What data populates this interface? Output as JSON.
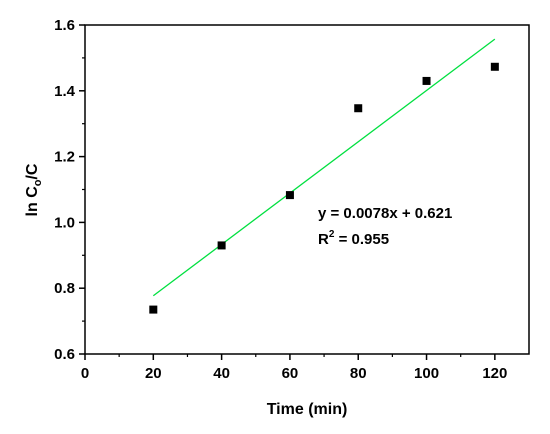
{
  "chart_data": {
    "type": "scatter",
    "xlabel": "Time (min)",
    "ylabel": {
      "main": "ln C",
      "sub": "o",
      "tail": "/C"
    },
    "xlim": [
      0,
      130
    ],
    "ylim": [
      0.6,
      1.6
    ],
    "xticks": [
      "0",
      "20",
      "40",
      "60",
      "80",
      "100",
      "120"
    ],
    "yticks": [
      "0.6",
      "0.8",
      "1.0",
      "1.2",
      "1.4",
      "1.6"
    ],
    "grid": false,
    "series": [
      {
        "x": [
          20,
          40,
          60,
          80,
          100,
          120
        ],
        "y": [
          0.735,
          0.93,
          1.083,
          1.347,
          1.43,
          1.473
        ],
        "color": "#000000"
      }
    ],
    "fit": {
      "slope": 0.0078,
      "intercept": 0.621,
      "x_range": [
        20,
        120
      ],
      "color": "#00e040"
    },
    "annotation": {
      "equation": "y = 0.0078x + 0.621",
      "r2_main": "R",
      "r2_sup": "2",
      "r2_tail": " = 0.955"
    }
  }
}
